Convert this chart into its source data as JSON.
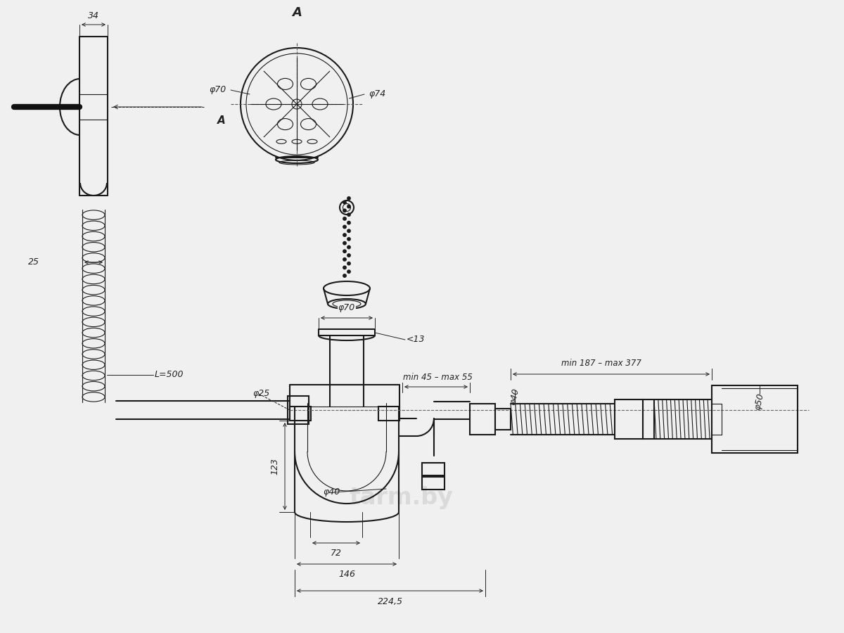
{
  "bg_color": "#f0f0f0",
  "line_color": "#1a1a1a",
  "dim_color": "#222222",
  "watermark": "tarm.by",
  "labels": {
    "dim_34": "34",
    "dim_25": "25",
    "dim_L500": "L=500",
    "dim_phi70_circle": "φ70",
    "dim_phi74_circle": "φ74",
    "label_A_section": "A",
    "label_A_arrow": "A",
    "dim_phi70_drain": "φ70",
    "dim_less13": "<13",
    "dim_phi25_hose": "φ25",
    "dim_phi40_trap": "φ40",
    "dim_123": "123",
    "dim_72": "72",
    "dim_146": "146",
    "dim_2245": "224,5",
    "dim_min45max55": "min 45 – max 55",
    "dim_min187max377": "min 187 – max 377",
    "dim_phi40_pipe": "φ40",
    "dim_phi50": "φ50"
  }
}
